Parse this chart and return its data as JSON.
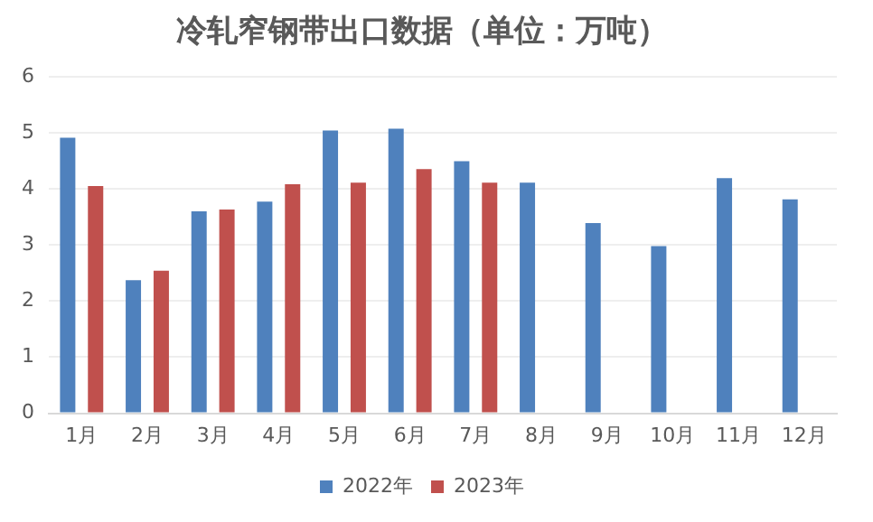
{
  "chart_data": {
    "type": "bar",
    "title": "冷轧窄钢带出口数据（单位：万吨）",
    "categories": [
      "1月",
      "2月",
      "3月",
      "4月",
      "5月",
      "6月",
      "7月",
      "8月",
      "9月",
      "10月",
      "11月",
      "12月"
    ],
    "series": [
      {
        "name": "2022年",
        "color": "#4f81bd",
        "values": [
          4.91,
          2.37,
          3.6,
          3.77,
          5.04,
          5.07,
          4.49,
          4.11,
          3.39,
          2.98,
          4.19,
          3.81
        ]
      },
      {
        "name": "2023年",
        "color": "#c0504d",
        "values": [
          4.05,
          2.54,
          3.63,
          4.08,
          4.11,
          4.35,
          4.11,
          null,
          null,
          null,
          null,
          null
        ]
      }
    ],
    "ylim": [
      0,
      6
    ],
    "yticks": [
      0,
      1,
      2,
      3,
      4,
      5,
      6
    ],
    "grid": "y",
    "legend": "bottom"
  }
}
